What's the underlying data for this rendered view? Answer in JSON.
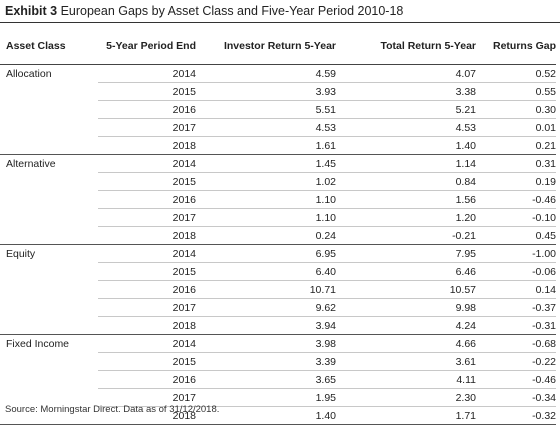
{
  "title": {
    "exhibit": "Exhibit 3",
    "text": "European Gaps by Asset Class and Five-Year Period 2010-18"
  },
  "table": {
    "headers": {
      "asset_class": "Asset Class",
      "period_end": "5-Year Period End",
      "investor_return": "Investor Return 5-Year",
      "total_return": "Total Return 5-Year",
      "returns_gap": "Returns Gap"
    },
    "groups": [
      {
        "name": "Allocation",
        "rows": [
          {
            "year": "2014",
            "investor": "4.59",
            "total": "4.07",
            "gap": "0.52"
          },
          {
            "year": "2015",
            "investor": "3.93",
            "total": "3.38",
            "gap": "0.55"
          },
          {
            "year": "2016",
            "investor": "5.51",
            "total": "5.21",
            "gap": "0.30"
          },
          {
            "year": "2017",
            "investor": "4.53",
            "total": "4.53",
            "gap": "0.01"
          },
          {
            "year": "2018",
            "investor": "1.61",
            "total": "1.40",
            "gap": "0.21"
          }
        ]
      },
      {
        "name": "Alternative",
        "rows": [
          {
            "year": "2014",
            "investor": "1.45",
            "total": "1.14",
            "gap": "0.31"
          },
          {
            "year": "2015",
            "investor": "1.02",
            "total": "0.84",
            "gap": "0.19"
          },
          {
            "year": "2016",
            "investor": "1.10",
            "total": "1.56",
            "gap": "-0.46"
          },
          {
            "year": "2017",
            "investor": "1.10",
            "total": "1.20",
            "gap": "-0.10"
          },
          {
            "year": "2018",
            "investor": "0.24",
            "total": "-0.21",
            "gap": "0.45"
          }
        ]
      },
      {
        "name": "Equity",
        "rows": [
          {
            "year": "2014",
            "investor": "6.95",
            "total": "7.95",
            "gap": "-1.00"
          },
          {
            "year": "2015",
            "investor": "6.40",
            "total": "6.46",
            "gap": "-0.06"
          },
          {
            "year": "2016",
            "investor": "10.71",
            "total": "10.57",
            "gap": "0.14"
          },
          {
            "year": "2017",
            "investor": "9.62",
            "total": "9.98",
            "gap": "-0.37"
          },
          {
            "year": "2018",
            "investor": "3.94",
            "total": "4.24",
            "gap": "-0.31"
          }
        ]
      },
      {
        "name": "Fixed Income",
        "rows": [
          {
            "year": "2014",
            "investor": "3.98",
            "total": "4.66",
            "gap": "-0.68"
          },
          {
            "year": "2015",
            "investor": "3.39",
            "total": "3.61",
            "gap": "-0.22"
          },
          {
            "year": "2016",
            "investor": "3.65",
            "total": "4.11",
            "gap": "-0.46"
          },
          {
            "year": "2017",
            "investor": "1.95",
            "total": "2.30",
            "gap": "-0.34"
          },
          {
            "year": "2018",
            "investor": "1.40",
            "total": "1.71",
            "gap": "-0.32"
          }
        ]
      }
    ]
  },
  "source": "Source: Morningstar Direct. Data as of 31/12/2018."
}
